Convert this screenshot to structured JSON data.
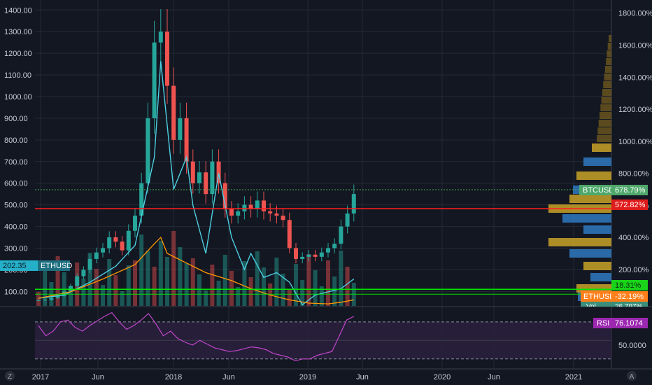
{
  "colors": {
    "background": "#131722",
    "grid": "#252a36",
    "axis_text": "#c9ccd4",
    "candle_up": "#26a69a",
    "candle_down": "#ef5350",
    "ethusd_line": "#4dd0e1",
    "btc_line": "#ff9800",
    "rsi": "#c046c9",
    "red_level": "#ff1f1f",
    "green_level": "#00e600"
  },
  "labels": {
    "left_price": "202.35",
    "left_symbol": "ETHUSD",
    "btcusd_tag": "BTCUSD",
    "btcusd_pct": "678.79%",
    "red_pct": "572.82%",
    "green_pct": "18.31%",
    "ethusd_tag": "ETHUSD",
    "ethusd_pct": "-32.19%",
    "cut_tag": "Vol",
    "cut_value": "26.797%",
    "rsi_label": "RSI",
    "rsi_value": "76.1074",
    "rsi_mid": "50.0000",
    "corner_left": "Z",
    "corner_right": "A"
  },
  "chart_data": [
    {
      "type": "line",
      "title": "",
      "series_note": "Candlesticks and volume with overlays",
      "y_left_ticks": [
        "100.00",
        "200.00",
        "300.00",
        "400.00",
        "500.00",
        "600.00",
        "700.00",
        "800.00",
        "900.00",
        "1000.00",
        "1100.00",
        "1200.00",
        "1300.00",
        "1400.00"
      ],
      "y_left_range": [
        30,
        1430
      ],
      "y_right_ticks": [
        "200.00%",
        "400.00%",
        "600.00%",
        "800.00%",
        "1000.00%",
        "1200.00%",
        "1400.00%",
        "1600.00%",
        "1800.00%"
      ],
      "y_right_range": [
        -32,
        1860
      ],
      "x_ticks": [
        "2017",
        "Jun",
        "2018",
        "Jun",
        "2019",
        "Jun",
        "2020",
        "Jun",
        "2021"
      ],
      "levels": {
        "red": 482,
        "green": 110
      },
      "ohlc_close_path": [
        [
          0,
          60
        ],
        [
          1,
          62
        ],
        [
          2,
          70
        ],
        [
          3,
          80
        ],
        [
          4,
          100
        ],
        [
          5,
          125
        ],
        [
          6,
          170
        ],
        [
          7,
          200
        ],
        [
          8,
          250
        ],
        [
          9,
          280
        ],
        [
          10,
          300
        ],
        [
          11,
          350
        ],
        [
          12,
          330
        ],
        [
          13,
          290
        ],
        [
          14,
          380
        ],
        [
          15,
          450
        ],
        [
          16,
          600
        ],
        [
          17,
          900
        ],
        [
          18,
          1250
        ],
        [
          19,
          1300
        ],
        [
          20,
          1050
        ],
        [
          21,
          800
        ],
        [
          22,
          900
        ],
        [
          23,
          700
        ],
        [
          24,
          600
        ],
        [
          25,
          650
        ],
        [
          26,
          550
        ],
        [
          27,
          700
        ],
        [
          28,
          600
        ],
        [
          29,
          480
        ],
        [
          30,
          450
        ],
        [
          31,
          470
        ],
        [
          32,
          500
        ],
        [
          33,
          480
        ],
        [
          34,
          520
        ],
        [
          35,
          470
        ],
        [
          36,
          460
        ],
        [
          37,
          450
        ],
        [
          38,
          430
        ],
        [
          39,
          300
        ],
        [
          40,
          250
        ],
        [
          41,
          260
        ],
        [
          42,
          270
        ],
        [
          43,
          260
        ],
        [
          44,
          280
        ],
        [
          45,
          300
        ],
        [
          46,
          320
        ],
        [
          47,
          400
        ],
        [
          48,
          460
        ],
        [
          49,
          550
        ]
      ],
      "ethusd_pct_path": [
        [
          0,
          20
        ],
        [
          4,
          40
        ],
        [
          8,
          120
        ],
        [
          12,
          220
        ],
        [
          15,
          350
        ],
        [
          18,
          900
        ],
        [
          19,
          1500
        ],
        [
          20,
          1100
        ],
        [
          21,
          700
        ],
        [
          23,
          900
        ],
        [
          24,
          600
        ],
        [
          26,
          300
        ],
        [
          28,
          800
        ],
        [
          30,
          400
        ],
        [
          32,
          200
        ],
        [
          33,
          300
        ],
        [
          35,
          150
        ],
        [
          37,
          180
        ],
        [
          39,
          120
        ],
        [
          41,
          -20
        ],
        [
          43,
          40
        ],
        [
          45,
          60
        ],
        [
          47,
          80
        ],
        [
          49,
          140
        ]
      ],
      "btc_pct_path": [
        [
          0,
          20
        ],
        [
          5,
          60
        ],
        [
          10,
          140
        ],
        [
          15,
          230
        ],
        [
          18,
          360
        ],
        [
          19,
          400
        ],
        [
          20,
          300
        ],
        [
          23,
          240
        ],
        [
          26,
          180
        ],
        [
          30,
          130
        ],
        [
          33,
          80
        ],
        [
          36,
          40
        ],
        [
          39,
          10
        ],
        [
          42,
          -10
        ],
        [
          45,
          -15
        ],
        [
          47,
          -5
        ],
        [
          49,
          10
        ]
      ]
    },
    {
      "type": "line",
      "title": "",
      "name": "RSI",
      "y_range": [
        20,
        85
      ],
      "levels": [
        70,
        30
      ],
      "labeled_tick": "50.0000",
      "values": [
        66,
        55,
        60,
        70,
        72,
        64,
        60,
        66,
        71,
        76,
        80,
        70,
        62,
        66,
        72,
        79,
        68,
        55,
        60,
        52,
        48,
        45,
        50,
        46,
        42,
        40,
        38,
        39,
        41,
        43,
        42,
        40,
        36,
        34,
        32,
        28,
        30,
        30,
        34,
        36,
        38,
        55,
        72,
        76
      ]
    }
  ]
}
